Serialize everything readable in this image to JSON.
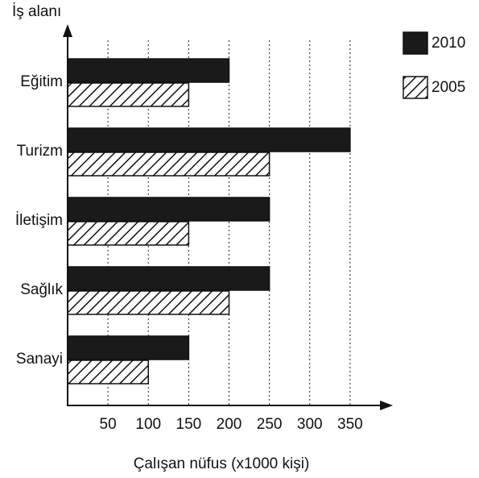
{
  "chart_data": {
    "type": "bar",
    "orientation": "horizontal",
    "y_label": "İş alanı",
    "x_label": "Çalışan nüfus (x1000 kişi)",
    "categories": [
      "Eğitim",
      "Turizm",
      "İletişim",
      "Sağlık",
      "Sanayi"
    ],
    "series": [
      {
        "name": "2010",
        "color": "#1a1a1a",
        "hatch": false,
        "values": [
          200,
          350,
          250,
          250,
          150
        ]
      },
      {
        "name": "2005",
        "color": "#111111",
        "hatch": true,
        "values": [
          150,
          250,
          150,
          200,
          100
        ]
      }
    ],
    "xlim": [
      0,
      400
    ],
    "xticks": [
      50,
      100,
      150,
      200,
      250,
      300,
      350
    ],
    "grid": true
  }
}
